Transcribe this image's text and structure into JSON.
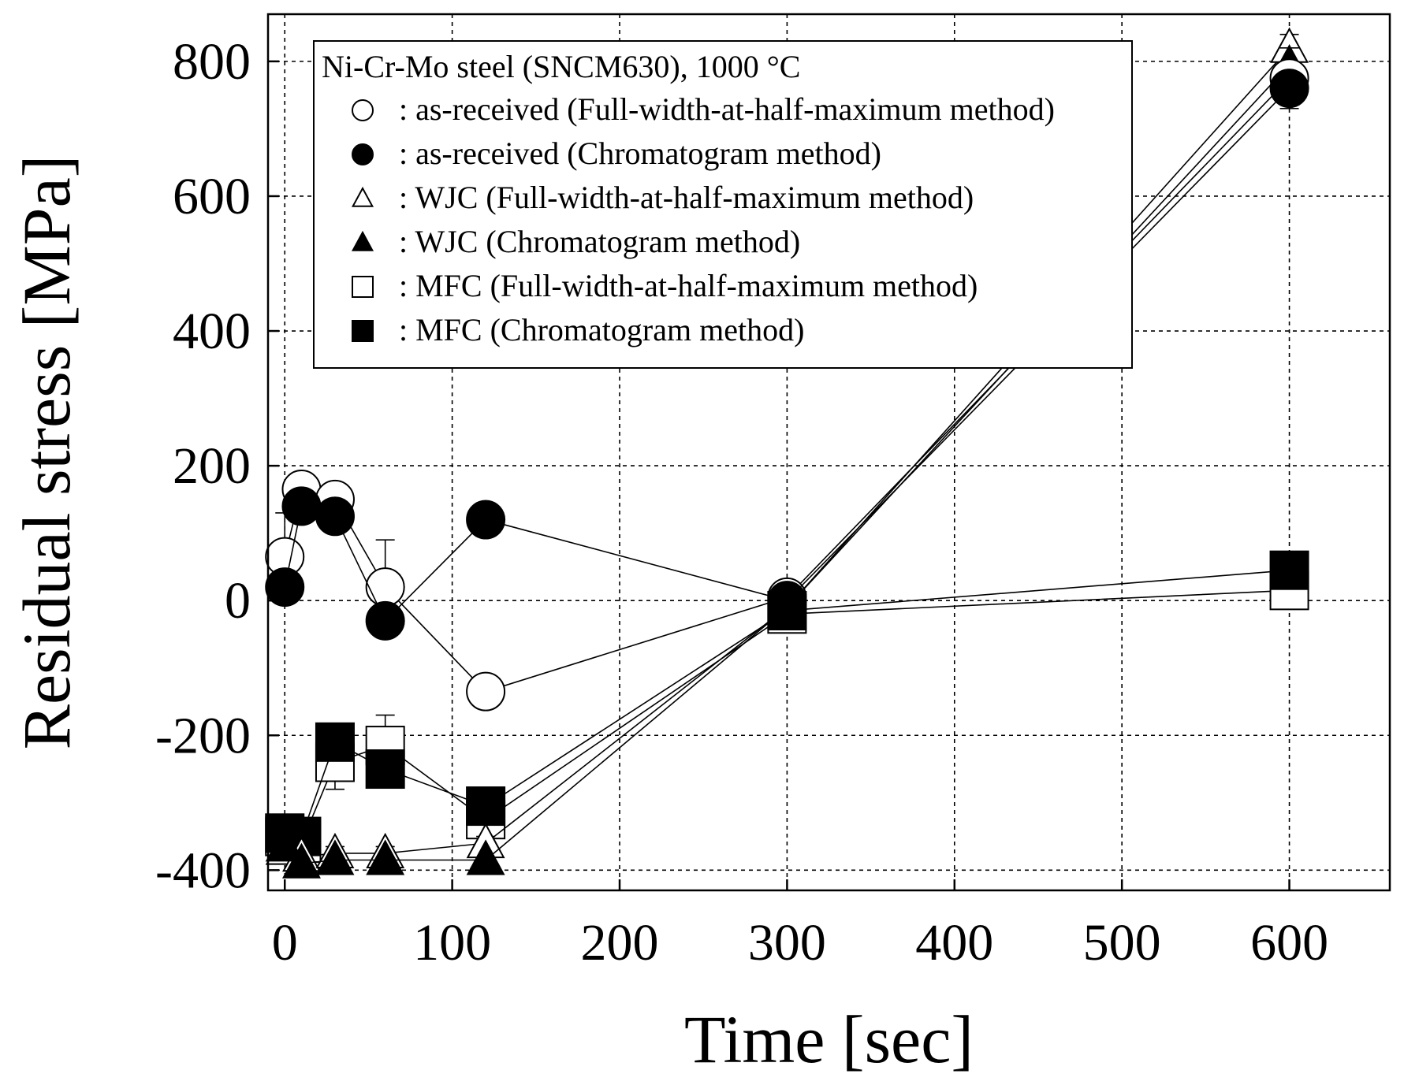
{
  "chart_data": {
    "type": "line",
    "title": "",
    "xlabel": "Time [sec]",
    "ylabel": "Residual stress [MPa]",
    "xlim": [
      -10,
      660
    ],
    "ylim": [
      -430,
      870
    ],
    "xticks": [
      0,
      100,
      200,
      300,
      400,
      500,
      600
    ],
    "yticks": [
      -400,
      -200,
      0,
      200,
      400,
      600,
      800
    ],
    "xtick_labels": [
      "0",
      "100",
      "200",
      "300",
      "400",
      "500",
      "600"
    ],
    "ytick_labels": [
      "-400",
      "-200",
      "0",
      "200",
      "400",
      "600",
      "800"
    ],
    "grid": true,
    "legend_position": "top-center",
    "legend_title": "Ni-Cr-Mo steel (SNCM630), 1000 °C",
    "series": [
      {
        "name": ": as-received (Full-width-at-half-maximum method)",
        "marker": "circle-open",
        "x": [
          0,
          10,
          30,
          60,
          120,
          300,
          600
        ],
        "y": [
          65,
          165,
          150,
          20,
          -135,
          5,
          775
        ],
        "err": [
          65,
          15,
          5,
          70,
          5,
          5,
          45
        ]
      },
      {
        "name": ": as-received (Chromatogram method)",
        "marker": "circle-filled",
        "x": [
          0,
          10,
          30,
          60,
          120,
          300,
          600
        ],
        "y": [
          20,
          140,
          125,
          -30,
          120,
          0,
          760
        ],
        "err": [
          0,
          0,
          0,
          0,
          0,
          0,
          0
        ]
      },
      {
        "name": ": WJC (Full-width-at-half-maximum method)",
        "marker": "triangle-open",
        "x": [
          0,
          10,
          30,
          60,
          120,
          300,
          600
        ],
        "y": [
          -370,
          -380,
          -375,
          -375,
          -360,
          -10,
          820
        ],
        "err": [
          10,
          10,
          10,
          10,
          10,
          5,
          20
        ]
      },
      {
        "name": ": WJC (Chromatogram method)",
        "marker": "triangle-filled",
        "x": [
          0,
          10,
          30,
          60,
          120,
          300,
          600
        ],
        "y": [
          -365,
          -390,
          -385,
          -385,
          -385,
          -10,
          795
        ],
        "err": [
          0,
          0,
          0,
          0,
          0,
          0,
          0
        ]
      },
      {
        "name": ": MFC (Full-width-at-half-maximum method)",
        "marker": "square-open",
        "x": [
          0,
          10,
          30,
          60,
          120,
          300,
          600
        ],
        "y": [
          -350,
          -360,
          -240,
          -215,
          -325,
          -20,
          15
        ],
        "err": [
          10,
          10,
          40,
          45,
          20,
          5,
          10
        ]
      },
      {
        "name": ": MFC (Chromatogram method)",
        "marker": "square-filled",
        "x": [
          0,
          10,
          30,
          60,
          120,
          300,
          600
        ],
        "y": [
          -345,
          -350,
          -210,
          -250,
          -305,
          -15,
          45
        ],
        "err": [
          0,
          0,
          0,
          0,
          0,
          0,
          0
        ]
      }
    ]
  }
}
